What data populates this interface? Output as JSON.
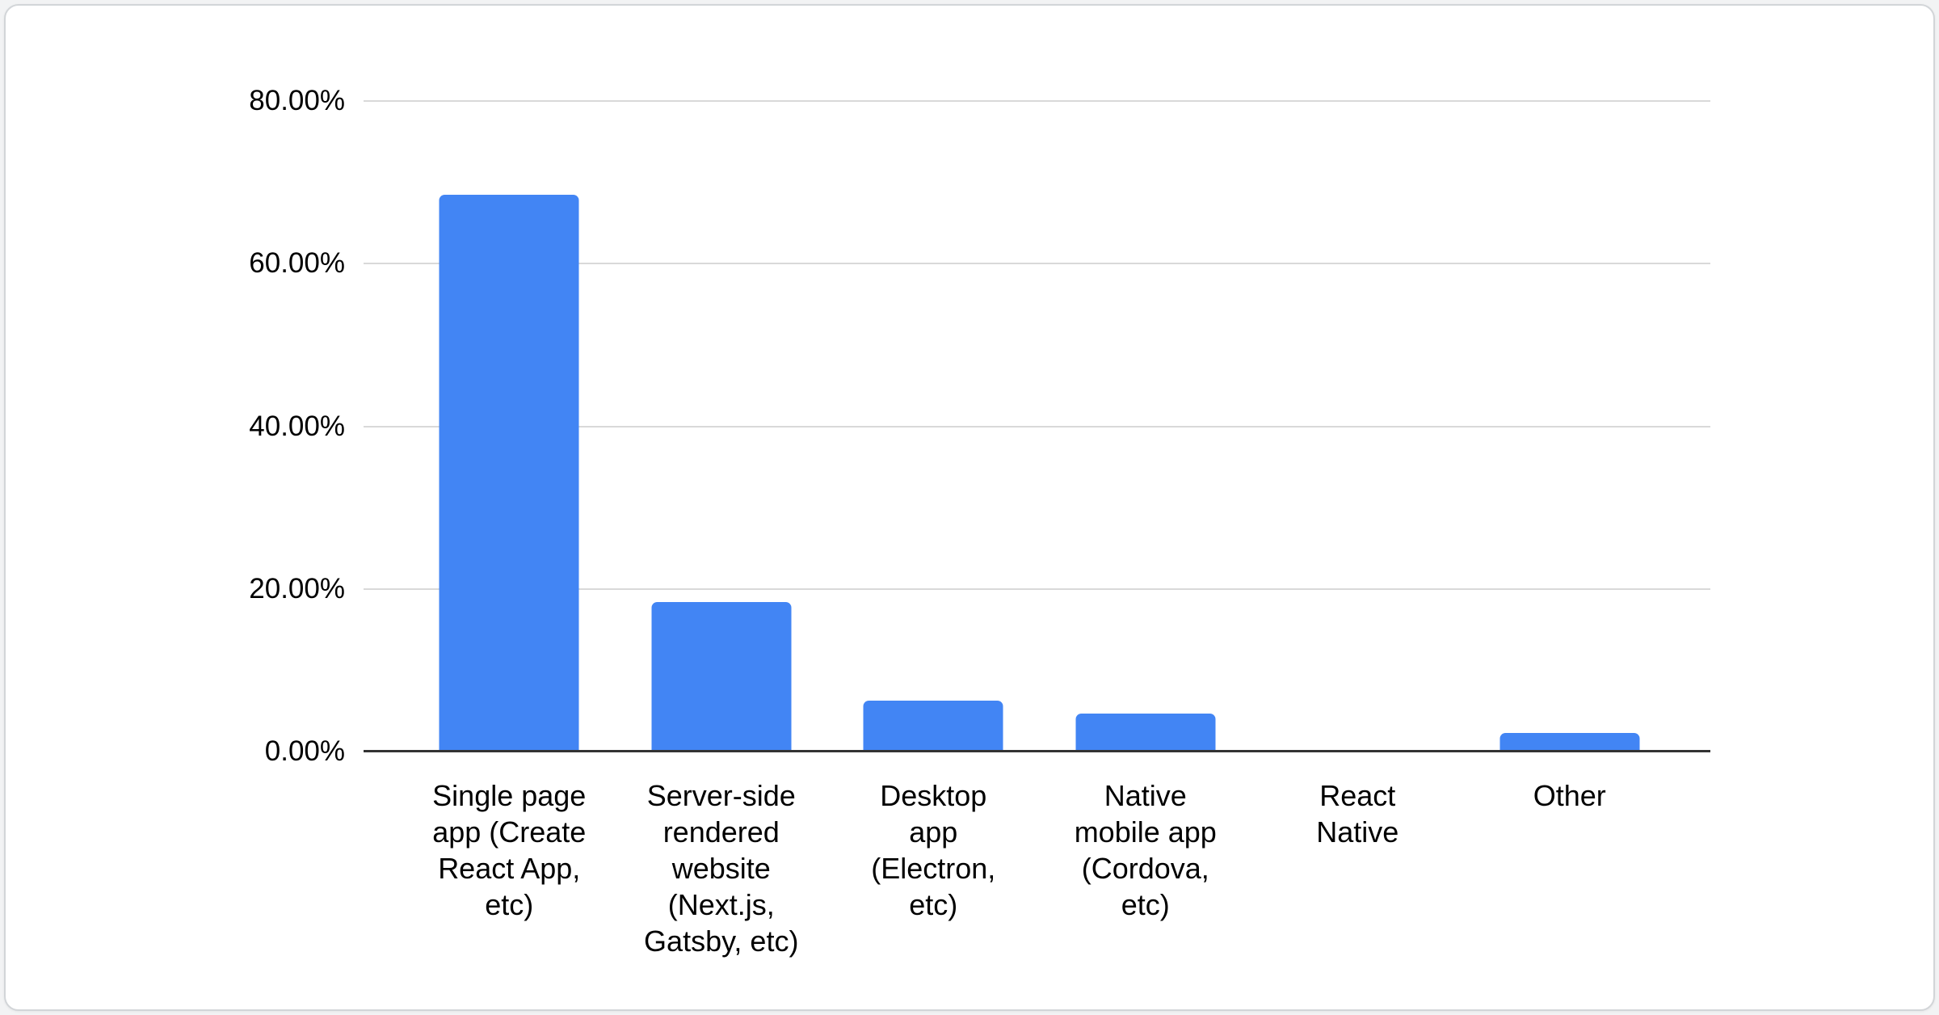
{
  "page": {
    "background_color": "#f2f3f4",
    "card_background": "#ffffff",
    "card_border_color": "#d2d5d8"
  },
  "chart_data": {
    "type": "bar",
    "title": "",
    "categories": [
      "Single page app (Create React App, etc)",
      "Server-side rendered website (Next.js, Gatsby, etc)",
      "Desktop app (Electron, etc)",
      "Native mobile app (Cordova, etc)",
      "React Native",
      "Other"
    ],
    "categories_display": [
      "Single page\napp (Create\nReact App,\netc)",
      "Server-side\nrendered\nwebsite\n(Next.js,\nGatsby, etc)",
      "Desktop\napp\n(Electron,\netc)",
      "Native\nmobile app\n(Cordova,\netc)",
      "React\nNative",
      "Other"
    ],
    "values": [
      68.5,
      18.4,
      6.3,
      4.7,
      0,
      2.3
    ],
    "unit": "%",
    "y_ticks": [
      {
        "value": 80,
        "label": "80.00%"
      },
      {
        "value": 60,
        "label": "60.00%"
      },
      {
        "value": 40,
        "label": "40.00%"
      },
      {
        "value": 20,
        "label": "20.00%"
      },
      {
        "value": 0,
        "label": "0.00%"
      }
    ],
    "ylim": [
      0,
      80
    ],
    "xlabel": "",
    "ylabel": "",
    "grid": true,
    "legend_position": "none",
    "bar_color": "#4285f4",
    "gridline_color": "#d9d9d9",
    "axis_line_color": "#333333",
    "label_color": "#000000"
  }
}
